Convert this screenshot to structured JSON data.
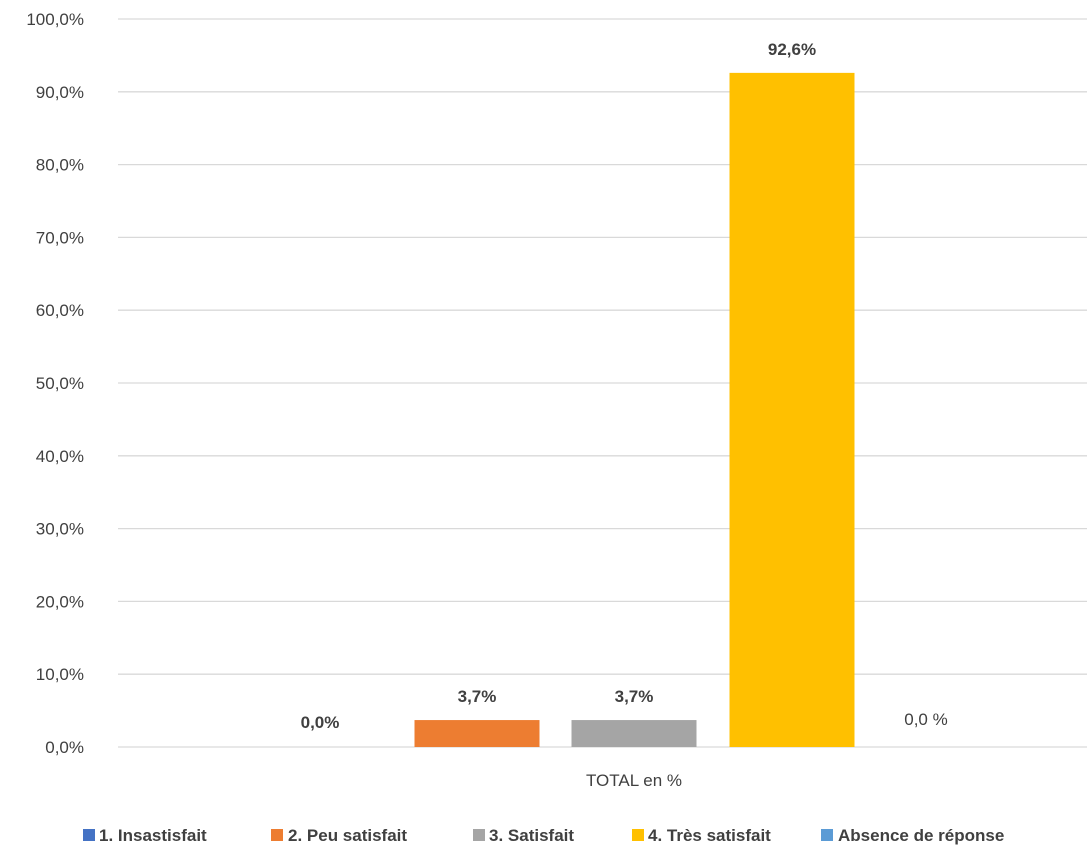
{
  "chart_data": {
    "type": "bar",
    "title": "",
    "xlabel": "",
    "ylabel": "",
    "categories": [
      "TOTAL en %"
    ],
    "ylim": [
      0,
      100
    ],
    "y_ticks": [
      "0,0%",
      "10,0%",
      "20,0%",
      "30,0%",
      "40,0%",
      "50,0%",
      "60,0%",
      "70,0%",
      "80,0%",
      "90,0%",
      "100,0%"
    ],
    "grid": true,
    "legend_position": "bottom",
    "series": [
      {
        "name": "1. Insastisfait",
        "values": [
          0.0
        ],
        "label": "0,0%",
        "label_bold": true,
        "color": "#4472c4"
      },
      {
        "name": "2. Peu satisfait",
        "values": [
          3.7
        ],
        "label": "3,7%",
        "label_bold": true,
        "color": "#ed7d31"
      },
      {
        "name": "3. Satisfait",
        "values": [
          3.7
        ],
        "label": "3,7%",
        "label_bold": true,
        "color": "#a5a5a5"
      },
      {
        "name": "4. Très satisfait",
        "values": [
          92.6
        ],
        "label": "92,6%",
        "label_bold": true,
        "color": "#ffc000"
      },
      {
        "name": "Absence de réponse",
        "values": [
          0.0
        ],
        "label": "0,0 %",
        "label_bold": false,
        "color": "#5b9bd5"
      }
    ]
  }
}
